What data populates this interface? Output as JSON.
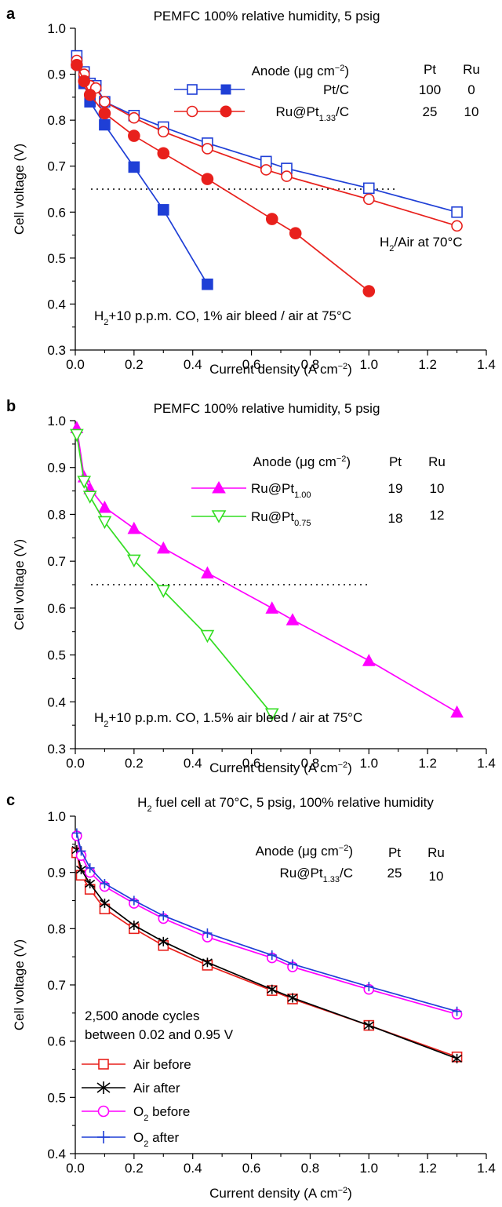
{
  "chart_data": [
    {
      "panel": "a",
      "type": "line",
      "title": "PEMFC 100% relative humidity, 5 psig",
      "xlabel": "Current density (A cm−2)",
      "ylabel": "Cell voltage (V)",
      "xlim": [
        0,
        1.4
      ],
      "ylim": [
        0.3,
        1.0
      ],
      "xticks": [
        "0.0",
        "0.2",
        "0.4",
        "0.6",
        "0.8",
        "1.0",
        "1.2",
        "1.4"
      ],
      "yticks": [
        "0.3",
        "0.4",
        "0.5",
        "0.6",
        "0.7",
        "0.8",
        "0.9",
        "1.0"
      ],
      "grid": false,
      "reference_line": {
        "y": 0.65,
        "x_range": [
          0,
          1.1
        ],
        "style": "dotted"
      },
      "legend": {
        "header": "Anode (μg cm−2)",
        "columns": [
          "Pt",
          "Ru"
        ],
        "entries": [
          {
            "name": "Pt/C",
            "pt": "100",
            "ru": "0"
          },
          {
            "name": "Ru@Pt1.33/C",
            "pt": "25",
            "ru": "10"
          }
        ]
      },
      "annotations": [
        "H2/Air at 70°C",
        "H2+10 p.p.m. CO, 1% air bleed / air at 75°C"
      ],
      "series": [
        {
          "legend_index": 0,
          "color": "#1f3fd6",
          "marker": "square-open",
          "x": [
            0.005,
            0.03,
            0.05,
            0.07,
            0.1,
            0.2,
            0.3,
            0.45,
            0.65,
            0.72,
            1.0,
            1.3
          ],
          "y": [
            0.94,
            0.905,
            0.88,
            0.875,
            0.84,
            0.81,
            0.785,
            0.75,
            0.71,
            0.695,
            0.652,
            0.6
          ]
        },
        {
          "legend_index": 0,
          "color": "#1f3fd6",
          "marker": "square-filled",
          "x": [
            0.005,
            0.03,
            0.05,
            0.1,
            0.2,
            0.3,
            0.45
          ],
          "y": [
            0.925,
            0.88,
            0.84,
            0.79,
            0.698,
            0.605,
            0.443
          ]
        },
        {
          "legend_index": 1,
          "color": "#e8201c",
          "marker": "circle-open",
          "x": [
            0.005,
            0.03,
            0.05,
            0.07,
            0.1,
            0.2,
            0.3,
            0.45,
            0.65,
            0.72,
            1.0,
            1.3
          ],
          "y": [
            0.93,
            0.9,
            0.875,
            0.87,
            0.84,
            0.805,
            0.775,
            0.738,
            0.692,
            0.678,
            0.628,
            0.57
          ]
        },
        {
          "legend_index": 1,
          "color": "#e8201c",
          "marker": "circle-filled",
          "x": [
            0.005,
            0.03,
            0.05,
            0.1,
            0.2,
            0.3,
            0.45,
            0.67,
            0.75,
            1.0
          ],
          "y": [
            0.92,
            0.885,
            0.855,
            0.815,
            0.766,
            0.728,
            0.672,
            0.585,
            0.554,
            0.428
          ]
        }
      ]
    },
    {
      "panel": "b",
      "type": "line",
      "title": "PEMFC 100% relative humidity, 5 psig",
      "xlabel": "Current density (A cm−2)",
      "ylabel": "Cell voltage (V)",
      "xlim": [
        0,
        1.4
      ],
      "ylim": [
        0.3,
        1.0
      ],
      "xticks": [
        "0.0",
        "0.2",
        "0.4",
        "0.6",
        "0.8",
        "1.0",
        "1.2",
        "1.4"
      ],
      "yticks": [
        "0.3",
        "0.4",
        "0.5",
        "0.6",
        "0.7",
        "0.8",
        "0.9",
        "1.0"
      ],
      "grid": false,
      "reference_line": {
        "y": 0.65,
        "x_range": [
          0,
          1.0
        ],
        "style": "dotted"
      },
      "legend": {
        "header": "Anode (μg cm−2)",
        "columns": [
          "Pt",
          "Ru"
        ],
        "entries": [
          {
            "name": "Ru@Pt1.00",
            "pt": "19",
            "ru": "10"
          },
          {
            "name": "Ru@Pt0.75",
            "pt": "18",
            "ru": "12"
          }
        ]
      },
      "annotations": [
        "H2+10 p.p.m. CO, 1.5% air bleed / air at 75°C"
      ],
      "series": [
        {
          "legend_index": 0,
          "color": "#ff00ff",
          "marker": "triangle-up-filled",
          "x": [
            0.005,
            0.03,
            0.05,
            0.1,
            0.2,
            0.3,
            0.45,
            0.67,
            0.74,
            1.0,
            1.3
          ],
          "y": [
            0.985,
            0.88,
            0.855,
            0.815,
            0.77,
            0.728,
            0.675,
            0.6,
            0.575,
            0.488,
            0.378
          ]
        },
        {
          "legend_index": 1,
          "color": "#33dd22",
          "marker": "triangle-down-open",
          "x": [
            0.005,
            0.03,
            0.05,
            0.1,
            0.2,
            0.3,
            0.45,
            0.67
          ],
          "y": [
            0.97,
            0.87,
            0.838,
            0.784,
            0.702,
            0.637,
            0.541,
            0.374
          ]
        }
      ]
    },
    {
      "panel": "c",
      "type": "line",
      "title": "H2 fuel cell at 70°C, 5 psig, 100% relative humidity",
      "xlabel": "Current density (A cm−2)",
      "ylabel": "Cell voltage (V)",
      "xlim": [
        0,
        1.4
      ],
      "ylim": [
        0.4,
        1.0
      ],
      "xticks": [
        "0.0",
        "0.2",
        "0.4",
        "0.6",
        "0.8",
        "1.0",
        "1.2",
        "1.4"
      ],
      "yticks": [
        "0.4",
        "0.5",
        "0.6",
        "0.7",
        "0.8",
        "0.9",
        "1.0"
      ],
      "grid": false,
      "legend": {
        "header": "Anode (μg cm−2)",
        "columns": [
          "Pt",
          "Ru"
        ],
        "entries": [
          {
            "name": "Ru@Pt1.33/C",
            "pt": "25",
            "ru": "10"
          }
        ]
      },
      "annotations": [
        "2,500 anode cycles",
        "between 0.02 and 0.95 V"
      ],
      "series": [
        {
          "name": "Air before",
          "color": "#e8201c",
          "marker": "square-open",
          "x": [
            0.005,
            0.02,
            0.05,
            0.1,
            0.2,
            0.3,
            0.45,
            0.67,
            0.74,
            1.0,
            1.3
          ],
          "y": [
            0.935,
            0.895,
            0.87,
            0.835,
            0.8,
            0.77,
            0.735,
            0.69,
            0.675,
            0.628,
            0.572
          ]
        },
        {
          "name": "Air after",
          "color": "#000000",
          "marker": "asterisk",
          "x": [
            0.005,
            0.02,
            0.05,
            0.1,
            0.2,
            0.3,
            0.45,
            0.67,
            0.74,
            1.0,
            1.3
          ],
          "y": [
            0.94,
            0.905,
            0.88,
            0.845,
            0.806,
            0.777,
            0.74,
            0.692,
            0.677,
            0.628,
            0.569
          ]
        },
        {
          "name": "O2 before",
          "color": "#ff00ff",
          "marker": "circle-open",
          "x": [
            0.005,
            0.02,
            0.05,
            0.1,
            0.2,
            0.3,
            0.45,
            0.67,
            0.74,
            1.0,
            1.3
          ],
          "y": [
            0.965,
            0.93,
            0.9,
            0.875,
            0.845,
            0.818,
            0.785,
            0.748,
            0.732,
            0.692,
            0.648
          ]
        },
        {
          "name": "O2 after",
          "color": "#1f3fd6",
          "marker": "plus",
          "x": [
            0.005,
            0.02,
            0.05,
            0.1,
            0.2,
            0.3,
            0.45,
            0.67,
            0.74,
            1.0,
            1.3
          ],
          "y": [
            0.97,
            0.938,
            0.908,
            0.88,
            0.85,
            0.823,
            0.792,
            0.753,
            0.737,
            0.697,
            0.653
          ]
        }
      ]
    }
  ]
}
